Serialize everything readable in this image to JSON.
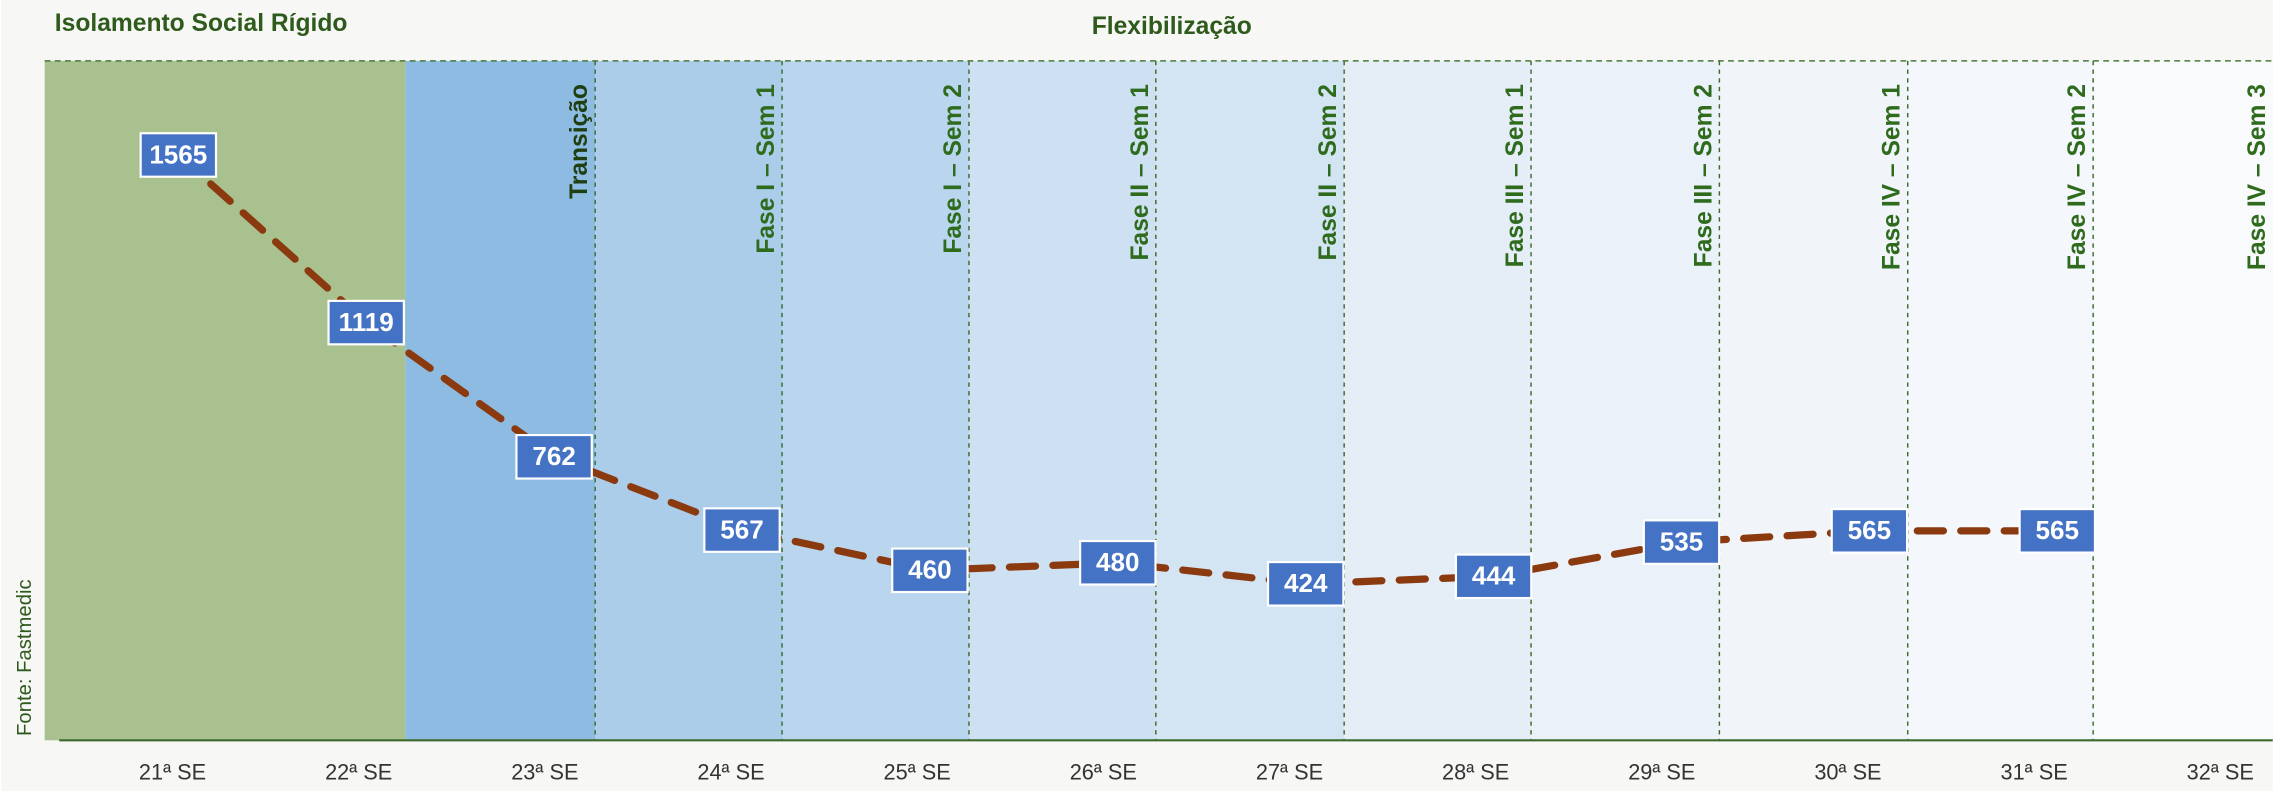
{
  "chart_data": {
    "type": "line",
    "title": "Flexibilização",
    "subtitle": "Isolamento Social Rígido",
    "source": "Fonte: Fastmedic",
    "phases": [
      "Transição",
      "Fase I – Sem 1",
      "Fase I – Sem 2",
      "Fase II – Sem 1",
      "Fase II – Sem 2",
      "Fase III – Sem 1",
      "Fase III – Sem 2",
      "Fase IV – Sem 1",
      "Fase IV – Sem 2",
      "Fase IV – Sem 3"
    ],
    "categories": [
      "21ª SE",
      "22ª SE",
      "23ª SE",
      "24ª SE",
      "25ª SE",
      "26ª SE",
      "27ª SE",
      "28ª SE",
      "29ª SE",
      "30ª SE",
      "31ª SE",
      "32ª SE"
    ],
    "series": [
      {
        "name": null,
        "color": "#8b3a0f",
        "values": [
          1565,
          1119,
          762,
          567,
          460,
          480,
          424,
          444,
          535,
          565,
          565,
          null
        ]
      }
    ],
    "label_color": "#4472c4",
    "ylim": [
      0,
      1800
    ]
  }
}
